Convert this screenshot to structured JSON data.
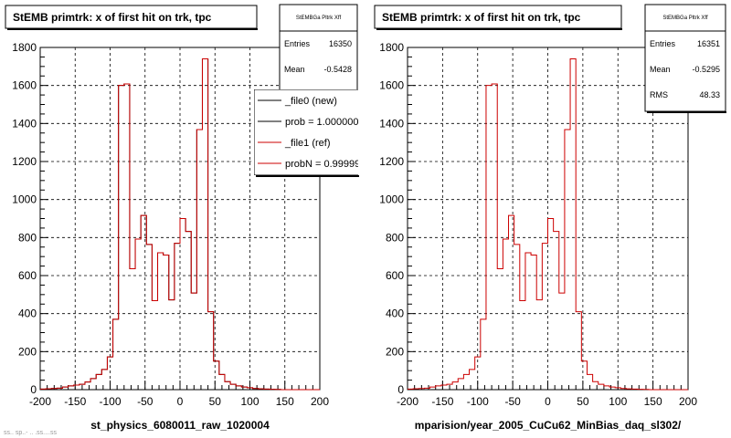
{
  "canvas": {
    "background": "#ffffff",
    "frame_fill": "#ffffff"
  },
  "colors": {
    "new": "#000000",
    "ref": "#cc0000",
    "grid": "#000000"
  },
  "footer_stub": "ss.. sp..- .. .ss....ss",
  "chart_data": [
    {
      "type": "histogram",
      "title": "StEMB primtrk: x of first hit on trk, tpc",
      "xlabel": "st_physics_6080011_raw_1020004",
      "ylabel": "",
      "xlim": [
        -200,
        200
      ],
      "ylim": [
        0,
        1800
      ],
      "xticks": [
        -200,
        -150,
        -100,
        -50,
        0,
        50,
        100,
        150,
        200
      ],
      "yticks": [
        0,
        200,
        400,
        600,
        800,
        1000,
        1200,
        1400,
        1600,
        1800
      ],
      "grid": true,
      "bin_width": 8,
      "x_start": -200,
      "stats": {
        "name": "StEMBGa Pltrk Xff",
        "entries_label": "Entries",
        "entries": "16350",
        "mean_label": "Mean",
        "mean": "-0.5428"
      },
      "legend": {
        "position": "top-right",
        "entries": [
          {
            "label": "_file0 (new)",
            "color": "#000000"
          },
          {
            "label": "prob = 1.000000",
            "color": "#000000"
          },
          {
            "label": "_file1 (ref)",
            "color": "#cc0000"
          },
          {
            "label": "probN = 0.99999",
            "color": "#cc0000"
          }
        ]
      },
      "series": [
        {
          "name": "_file0 (new)",
          "color": "#000000",
          "values": [
            3,
            5,
            6,
            8,
            14,
            20,
            24,
            28,
            40,
            58,
            80,
            106,
            172,
            370,
            1600,
            1608,
            636,
            792,
            916,
            764,
            468,
            720,
            708,
            472,
            770,
            900,
            832,
            508,
            1368,
            1740,
            410,
            150,
            80,
            42,
            28,
            20,
            14,
            10,
            6,
            4,
            3,
            2,
            1,
            0,
            0,
            0,
            0,
            0,
            0,
            0
          ]
        },
        {
          "name": "_file1 (ref)",
          "color": "#cc0000",
          "values": [
            3,
            5,
            6,
            8,
            14,
            20,
            24,
            28,
            40,
            58,
            80,
            106,
            172,
            370,
            1600,
            1608,
            636,
            792,
            916,
            764,
            468,
            720,
            708,
            472,
            770,
            900,
            832,
            508,
            1368,
            1740,
            410,
            150,
            80,
            42,
            28,
            20,
            14,
            10,
            6,
            4,
            3,
            2,
            1,
            0,
            0,
            0,
            0,
            0,
            0,
            0
          ]
        }
      ]
    },
    {
      "type": "histogram",
      "title": "StEMB primtrk: x of first hit on trk, tpc",
      "xlabel": "mparision/year_2005_CuCu62_MinBias_daq_sl302/",
      "ylabel": "",
      "xlim": [
        -200,
        200
      ],
      "ylim": [
        0,
        1800
      ],
      "xticks": [
        -200,
        -150,
        -100,
        -50,
        0,
        50,
        100,
        150,
        200
      ],
      "yticks": [
        0,
        200,
        400,
        600,
        800,
        1000,
        1200,
        1400,
        1600,
        1800
      ],
      "grid": true,
      "bin_width": 8,
      "x_start": -200,
      "stats": {
        "name": "StEMBGa Pltrk Xff",
        "entries_label": "Entries",
        "entries": "16351",
        "mean_label": "Mean",
        "mean": "-0.5295",
        "rms_label": "RMS",
        "rms": "48.33"
      },
      "series": [
        {
          "name": "",
          "color": "#cc0000",
          "values": [
            3,
            5,
            6,
            8,
            14,
            20,
            24,
            28,
            40,
            58,
            80,
            106,
            172,
            370,
            1600,
            1608,
            636,
            792,
            916,
            764,
            468,
            720,
            708,
            472,
            770,
            900,
            832,
            508,
            1368,
            1740,
            410,
            150,
            80,
            42,
            28,
            20,
            14,
            10,
            6,
            4,
            3,
            2,
            1,
            0,
            0,
            0,
            0,
            0,
            0,
            0
          ]
        }
      ]
    }
  ]
}
